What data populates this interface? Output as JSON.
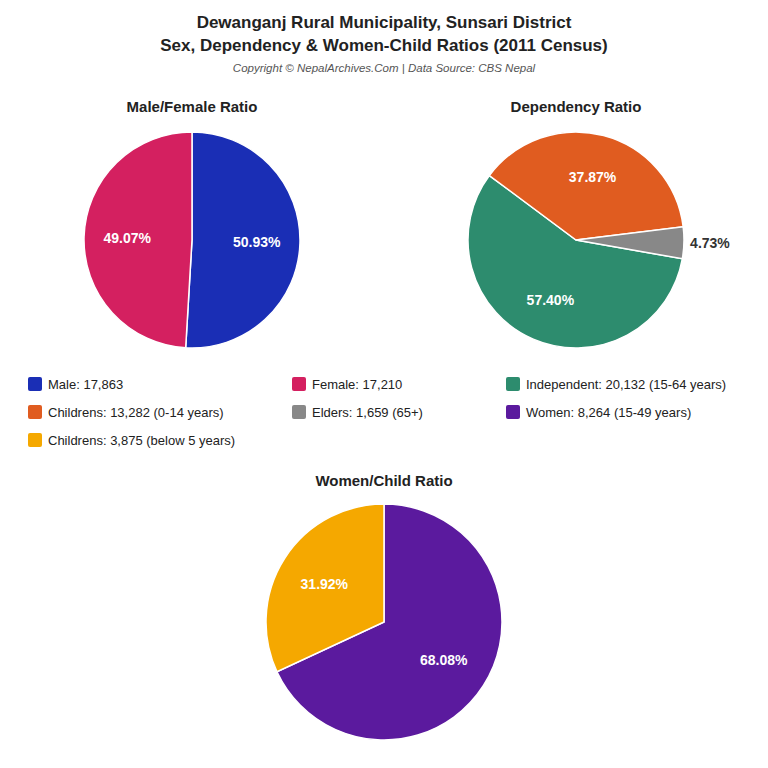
{
  "title": "Dewanganj Rural Municipality, Sunsari District",
  "subtitle": "Sex, Dependency & Women-Child Ratios (2011 Census)",
  "annotations": [
    "Copyright © NepalArchives.Com | Data Source: CBS Nepal"
  ],
  "chart_data": [
    {
      "type": "pie",
      "title": "Male/Female Ratio",
      "categories": [
        "Male: 17,863",
        "Female: 17,210"
      ],
      "values": [
        50.93,
        49.07
      ],
      "value_labels": [
        "50.93%",
        "49.07%"
      ],
      "colors": [
        "#1a2eb5",
        "#d42060"
      ],
      "data_labels": true,
      "legend": "bottom"
    },
    {
      "type": "pie",
      "title": "Dependency Ratio",
      "categories": [
        "Independent: 20,132 (15-64 years)",
        "Childrens: 13,282 (0-14 years)",
        "Elders: 1,659 (65+)"
      ],
      "values": [
        57.4,
        37.87,
        4.73
      ],
      "value_labels": [
        "57.40%",
        "37.87%",
        "4.73%"
      ],
      "colors": [
        "#2d8c6e",
        "#e05c20",
        "#888888"
      ],
      "data_labels": true,
      "legend": "bottom"
    },
    {
      "type": "pie",
      "title": "Women/Child Ratio",
      "categories": [
        "Women: 8,264 (15-49 years)",
        "Childrens: 3,875 (below 5 years)"
      ],
      "values": [
        68.08,
        31.92
      ],
      "value_labels": [
        "68.08%",
        "31.92%"
      ],
      "colors": [
        "#5b1a9e",
        "#f5a800"
      ],
      "data_labels": true,
      "legend": "bottom"
    }
  ]
}
